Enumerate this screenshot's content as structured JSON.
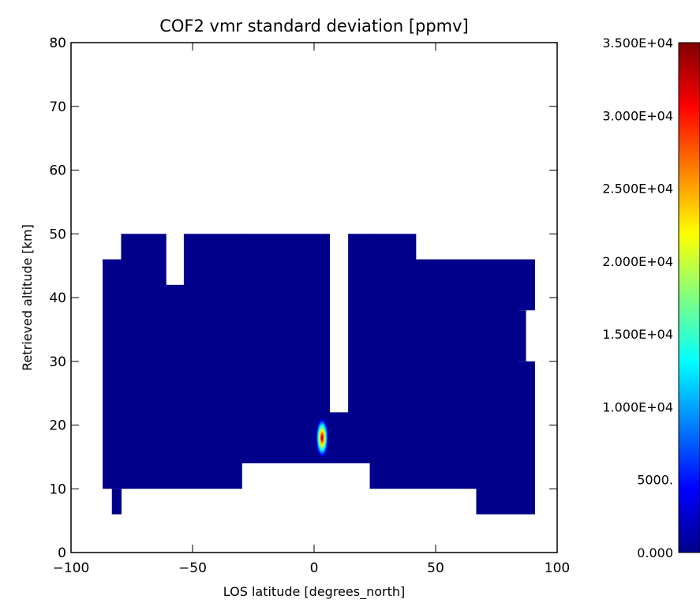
{
  "chart_data": {
    "type": "heatmap",
    "title": "COF2 vmr standard deviation [ppmv]",
    "xlabel": "LOS latitude [degrees_north]",
    "ylabel": "Retrieved altitude [km]",
    "xlim": [
      -100,
      100
    ],
    "ylim": [
      0,
      80
    ],
    "xticks": [
      -100,
      -50,
      0,
      50,
      100
    ],
    "xtick_labels": [
      "−100",
      "−50",
      "0",
      "50",
      "100"
    ],
    "yticks": [
      0,
      10,
      20,
      30,
      40,
      50,
      60,
      70,
      80
    ],
    "ytick_labels": [
      "0",
      "10",
      "20",
      "30",
      "40",
      "50",
      "60",
      "70",
      "80"
    ],
    "background_value": 0,
    "background_color": "#00008b",
    "missing_color": "#ffffff",
    "field_columns": [
      {
        "x": [
          -87.0,
          -79.4
        ],
        "y": [
          10.0,
          46.0
        ]
      },
      {
        "x": [
          -83.2,
          -79.4
        ],
        "y": [
          6.0,
          10.0
        ]
      },
      {
        "x": [
          -79.4,
          -61.0
        ],
        "y": [
          10.0,
          50.0
        ]
      },
      {
        "x": [
          -61.0,
          -53.6
        ],
        "y": [
          10.0,
          42.0
        ]
      },
      {
        "x": [
          -53.6,
          -29.8
        ],
        "y": [
          10.0,
          50.0
        ]
      },
      {
        "x": [
          -29.8,
          6.3
        ],
        "y": [
          14.0,
          50.0
        ]
      },
      {
        "x": [
          6.3,
          14.0
        ],
        "y": [
          14.0,
          22.0
        ]
      },
      {
        "x": [
          14.0,
          22.9
        ],
        "y": [
          14.0,
          50.0
        ]
      },
      {
        "x": [
          22.9,
          41.8
        ],
        "y": [
          10.0,
          50.0
        ]
      },
      {
        "x": [
          41.8,
          66.7
        ],
        "y": [
          10.0,
          46.0
        ]
      },
      {
        "x": [
          66.7,
          83.5
        ],
        "y": [
          6.0,
          46.0
        ]
      },
      {
        "x": [
          83.5,
          90.7
        ],
        "y": [
          6.0,
          30.0
        ]
      },
      {
        "x": [
          83.5,
          87.0
        ],
        "y": [
          30.0,
          38.0
        ]
      },
      {
        "x": [
          83.5,
          90.7
        ],
        "y": [
          38.0,
          46.0
        ]
      }
    ],
    "peak": {
      "x": 3.3,
      "y": 18.0,
      "value": 35000,
      "half_width_deg": 2.6,
      "half_height_km": 3.1
    },
    "colorbar": {
      "min": 0,
      "max": 35000,
      "ticks": [
        0,
        5000,
        10000,
        15000,
        20000,
        25000,
        30000,
        35000
      ],
      "tick_labels": [
        "0.000",
        "5000.",
        "1.000E+04",
        "1.500E+04",
        "2.000E+04",
        "2.500E+04",
        "3.000E+04",
        "3.500E+04"
      ],
      "colormap": "jet",
      "colors": [
        "#00008b",
        "#0000ff",
        "#0080ff",
        "#00ffff",
        "#80ff80",
        "#ffff00",
        "#ff8000",
        "#ff0000",
        "#800000"
      ]
    }
  }
}
